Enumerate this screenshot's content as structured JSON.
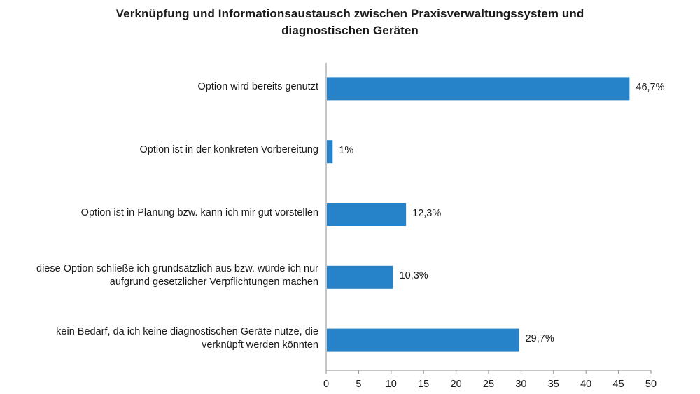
{
  "chart_data": {
    "type": "bar",
    "orientation": "horizontal",
    "title": [
      "Verknüpfung und Informationsaustausch zwischen Praxisverwaltungssystem und",
      "diagnostischen Geräten"
    ],
    "categories": [
      [
        "Option wird bereits genutzt"
      ],
      [
        "Option ist in der konkreten Vorbereitung"
      ],
      [
        "Option ist in Planung bzw. kann ich mir gut vorstellen"
      ],
      [
        "diese Option schließe ich grundsätzlich aus bzw. würde ich nur",
        "aufgrund gesetzlicher Verpflichtungen machen"
      ],
      [
        "kein Bedarf, da ich keine diagnostischen Geräte nutze, die",
        "verknüpft werden könnten"
      ]
    ],
    "values": [
      46.7,
      1,
      12.3,
      10.3,
      29.7
    ],
    "data_labels": [
      "46,7%",
      "1%",
      "12,3%",
      "10,3%",
      "29,7%"
    ],
    "xlim": [
      0,
      50
    ],
    "xticks": [
      "0",
      "5",
      "10",
      "15",
      "20",
      "25",
      "30",
      "35",
      "40",
      "45",
      "50"
    ],
    "bar_color": "#2783c9",
    "axis_color": "#8c8c8c",
    "grid": false
  }
}
